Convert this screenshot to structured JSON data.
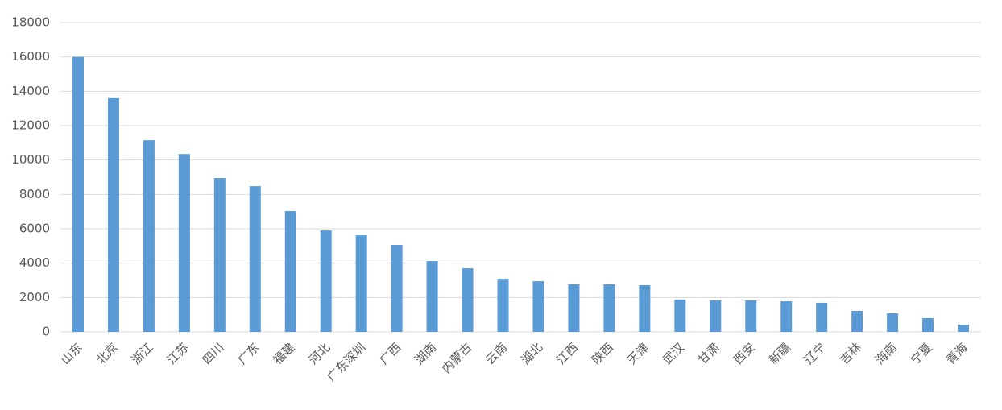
{
  "chart_data": {
    "type": "bar",
    "categories": [
      "山东",
      "北京",
      "浙江",
      "江苏",
      "四川",
      "广东",
      "福建",
      "河北",
      "广东深圳",
      "广西",
      "湖南",
      "内蒙古",
      "云南",
      "湖北",
      "江西",
      "陕西",
      "天津",
      "武汉",
      "甘肃",
      "西安",
      "新疆",
      "辽宁",
      "吉林",
      "海南",
      "宁夏",
      "青海"
    ],
    "values": [
      16000,
      13600,
      11150,
      10350,
      8950,
      8480,
      7030,
      5900,
      5620,
      5060,
      4120,
      3700,
      3090,
      2950,
      2770,
      2770,
      2720,
      1880,
      1830,
      1830,
      1780,
      1690,
      1220,
      1080,
      800,
      420
    ],
    "color": "#5b9bd5",
    "ylim": [
      0,
      18000
    ],
    "yticks": [
      0,
      2000,
      4000,
      6000,
      8000,
      10000,
      12000,
      14000,
      16000,
      18000
    ],
    "grid": true
  }
}
